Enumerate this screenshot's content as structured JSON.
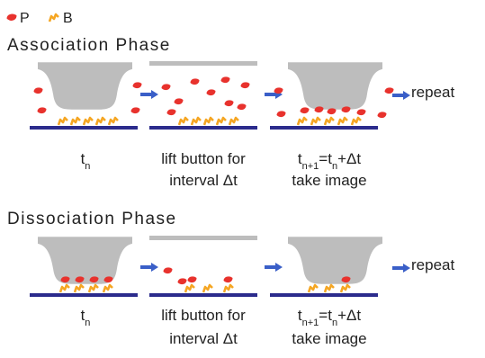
{
  "legend": {
    "items": [
      {
        "label": "P",
        "color": "#e8322d"
      },
      {
        "label": "B",
        "color": "#f5a623"
      }
    ]
  },
  "phases": [
    {
      "title": "Association Phase",
      "steps": [
        {
          "lines": [
            [
              {
                "text": "t"
              },
              {
                "sub": "n"
              }
            ]
          ]
        },
        {
          "lines": [
            [
              {
                "text": "lift button for"
              }
            ],
            [
              {
                "text": "interval Δt"
              }
            ]
          ]
        },
        {
          "lines": [
            [
              {
                "text": "t"
              },
              {
                "sub": "n+1"
              },
              {
                "text": "=t"
              },
              {
                "sub": "n"
              },
              {
                "text": "+Δt"
              }
            ],
            [
              {
                "text": "take image"
              }
            ]
          ]
        }
      ],
      "repeat": "repeat"
    },
    {
      "title": "Dissociation Phase",
      "steps": [
        {
          "lines": [
            [
              {
                "text": "t"
              },
              {
                "sub": "n"
              }
            ]
          ]
        },
        {
          "lines": [
            [
              {
                "text": "lift button for"
              }
            ],
            [
              {
                "text": "interval Δt"
              }
            ]
          ]
        },
        {
          "lines": [
            [
              {
                "text": "t"
              },
              {
                "sub": "n+1"
              },
              {
                "text": "=t"
              },
              {
                "sub": "n"
              },
              {
                "text": "+Δt"
              }
            ],
            [
              {
                "text": "take image"
              }
            ]
          ]
        }
      ],
      "repeat": "repeat"
    }
  ]
}
